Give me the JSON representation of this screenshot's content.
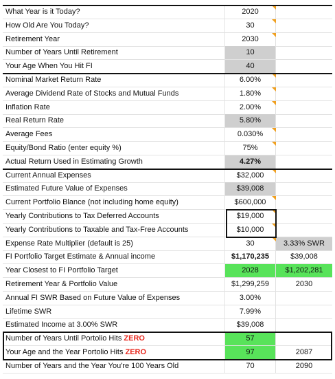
{
  "rows": [
    {
      "label": "What Year is it Today?",
      "value": "2020"
    },
    {
      "label": "How Old Are You Today?",
      "value": "30"
    },
    {
      "label": "Retirement Year",
      "value": "2030"
    },
    {
      "label": "Number of Years Until Retirement",
      "value": "10"
    },
    {
      "label": "Your Age When You Hit FI",
      "value": "40"
    },
    {
      "label": "Nominal Market Return Rate",
      "value": "6.00%"
    },
    {
      "label": "Average Dividend Rate of Stocks and Mutual Funds",
      "value": "1.80%"
    },
    {
      "label": "Inflation Rate",
      "value": "2.00%"
    },
    {
      "label": "Real Return Rate",
      "value": "5.80%"
    },
    {
      "label": "Average Fees",
      "value": "0.030%"
    },
    {
      "label": "Equity/Bond Ratio (enter equity %)",
      "value": "75%"
    },
    {
      "label": "Actual Return Used in Estimating Growth",
      "value": "4.27%"
    },
    {
      "label": "Current Annual Expenses",
      "value": "$32,000"
    },
    {
      "label": "Estimated Future Value of Expenses",
      "value": "$39,008"
    },
    {
      "label": "Current Portfolio Blance (not including home equity)",
      "value": "$600,000"
    },
    {
      "label": "Yearly Contributions to Tax Deferred Accounts",
      "value": "$19,000"
    },
    {
      "label": "Yearly Contributions to Taxable and Tax-Free Accounts",
      "value": "$10,000"
    },
    {
      "label": "Expense Rate Multiplier (default is 25)",
      "value": "30",
      "value2": "3.33% SWR"
    },
    {
      "label": "FI Portfolio Target Estimate & Annual income",
      "value": "$1,170,235",
      "value2": "$39,008"
    },
    {
      "label": "Year Closest to FI Portfolio Target",
      "value": "2028",
      "value2": "$1,202,281"
    },
    {
      "label": "Retirement Year & Portfolio Value",
      "value": "$1,299,259",
      "value2": "2030"
    },
    {
      "label": "Annual FI SWR Based on Future Value of Expenses",
      "value": "3.00%"
    },
    {
      "label": "Lifetime SWR",
      "value": "7.99%"
    },
    {
      "label": "Estimated Income at 3.00% SWR",
      "value": "$39,008"
    },
    {
      "label": "Number of Years Until Portolio Hits ",
      "label_emphasis": "ZERO",
      "value": "57"
    },
    {
      "label": "Your Age and the Year Portolio Hits ",
      "label_emphasis": "ZERO",
      "value": "97",
      "value2": "2087"
    },
    {
      "label": "Number of Years and the Year You're 100 Years Old",
      "value": "70",
      "value2": "2090"
    }
  ]
}
